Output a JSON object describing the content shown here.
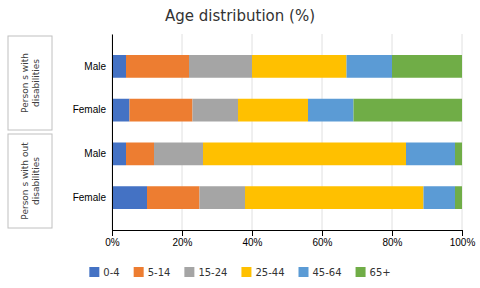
{
  "chart_data": {
    "type": "bar",
    "orientation": "horizontal",
    "stacked": true,
    "title": "Age distribution (%)",
    "categories": [
      "Male",
      "Female",
      "Male",
      "Female"
    ],
    "annotations": [
      "Person s with\ndisabilities",
      "Person s with out\ndisabilities"
    ],
    "series": [
      {
        "name": "0-4",
        "color": "#4472c4",
        "values": [
          4,
          5,
          4,
          10
        ]
      },
      {
        "name": "5-14",
        "color": "#ed7d31",
        "values": [
          18,
          18,
          8,
          15
        ]
      },
      {
        "name": "15-24",
        "color": "#a5a5a5",
        "values": [
          18,
          13,
          14,
          13
        ]
      },
      {
        "name": "25-44",
        "color": "#ffc000",
        "values": [
          27,
          20,
          58,
          51
        ]
      },
      {
        "name": "45-64",
        "color": "#5b9bd5",
        "values": [
          13,
          13,
          14,
          9
        ]
      },
      {
        "name": "65+",
        "color": "#70ad47",
        "values": [
          20,
          31,
          2,
          2
        ]
      }
    ],
    "xlim": [
      0,
      100
    ],
    "xticks": [
      {
        "value": 0,
        "label": "0%"
      },
      {
        "value": 20,
        "label": "20%"
      },
      {
        "value": 40,
        "label": "40%"
      },
      {
        "value": 60,
        "label": "60%"
      },
      {
        "value": 80,
        "label": "80%"
      },
      {
        "value": 100,
        "label": "100%"
      }
    ],
    "grid": true,
    "legend": "bottom"
  }
}
